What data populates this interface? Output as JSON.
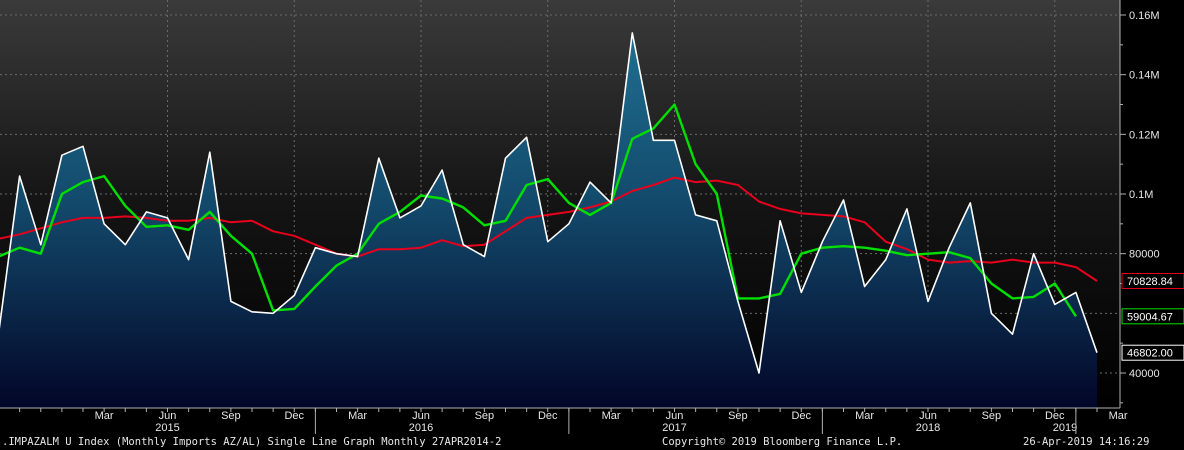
{
  "chart_data": {
    "type": "line",
    "x_month_labels": [
      "Mar",
      "Jun",
      "Sep",
      "Dec",
      "Mar",
      "Jun",
      "Sep",
      "Dec",
      "Mar",
      "Jun",
      "Sep",
      "Dec",
      "Mar",
      "Jun",
      "Sep",
      "Dec",
      "Mar"
    ],
    "x_year_labels": [
      "2015",
      "2016",
      "2017",
      "2018",
      "2019"
    ],
    "y_ticks": [
      "40000",
      "80000",
      "0.1M",
      "0.12M",
      "0.14M",
      "0.16M"
    ],
    "ylim": [
      28000,
      166000
    ],
    "start_month": "2014-10",
    "series": [
      {
        "color": "#ffffff",
        "fill": true,
        "last_label": "46802.00",
        "values": [
          53000,
          106000,
          83000,
          113000,
          116000,
          90000,
          83000,
          94000,
          92000,
          78000,
          114000,
          64000,
          60500,
          60000,
          66000,
          82000,
          80000,
          79000,
          112000,
          92000,
          96000,
          108000,
          83000,
          79000,
          112000,
          119000,
          84000,
          90000,
          104000,
          97000,
          154000,
          118000,
          118000,
          93000,
          91000,
          64000,
          40000,
          91000,
          67000,
          84000,
          98000,
          69000,
          78000,
          95000,
          64000,
          82000,
          97000,
          60000,
          53000,
          80000,
          63000,
          67000,
          46802
        ]
      },
      {
        "color": "#00e000",
        "fill": false,
        "last_label": "59004.67",
        "values": [
          79000,
          82000,
          80000,
          100000,
          104000,
          106000,
          96000,
          89000,
          89500,
          88000,
          94000,
          86000,
          80000,
          61000,
          61500,
          69000,
          76000,
          80000,
          90000,
          94000,
          99500,
          98500,
          95500,
          89500,
          91000,
          103000,
          105000,
          97000,
          93000,
          97000,
          118500,
          122000,
          130000,
          110000,
          100000,
          65000,
          65000,
          66500,
          80000,
          82000,
          82500,
          82000,
          81000,
          79500,
          80000,
          80500,
          78500,
          70000,
          65000,
          65500,
          70000,
          59004.67
        ]
      },
      {
        "color": "#e8001c",
        "fill": false,
        "last_label": "70828.84",
        "values": [
          85000,
          86500,
          88500,
          90500,
          92000,
          92000,
          92500,
          92000,
          91000,
          91000,
          92000,
          90500,
          91000,
          87500,
          86000,
          83000,
          80000,
          79000,
          81500,
          81500,
          82000,
          84500,
          82500,
          83000,
          87500,
          92000,
          93000,
          94000,
          95500,
          97500,
          101000,
          103000,
          105500,
          104000,
          104500,
          103000,
          97500,
          95000,
          93500,
          93000,
          92500,
          90500,
          84000,
          81500,
          78000,
          77000,
          77500,
          77000,
          78000,
          77000,
          77000,
          75500,
          70828.84
        ]
      }
    ]
  },
  "footer": {
    "left": ".IMPAZALM U Index (Monthly Imports AZ/AL) Single Line Graph  Monthly 27APR2014-2",
    "mid": "Copyright© 2019 Bloomberg Finance L.P.",
    "right": "26-Apr-2019 14:16:29"
  }
}
